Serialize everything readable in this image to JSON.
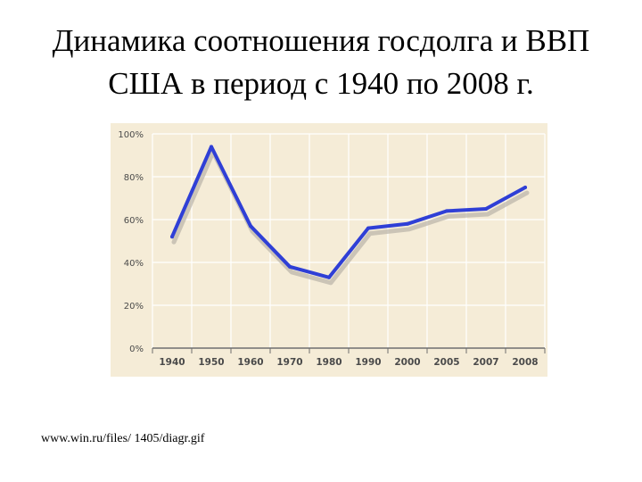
{
  "slide": {
    "title_line1": "Динамика соотношения госдолга и ВВП",
    "title_line2": "США в период с 1940 по 2008 г.",
    "source": "www.win.ru/files/ 1405/diagr.gif"
  },
  "colors": {
    "chart_background": "#f5ecd7",
    "line": "#2f3fd6",
    "shadow": "#b9b4a8",
    "grid": "#ffffff",
    "axis": "#6e6e6e",
    "tick_text": "#4a4a4a"
  },
  "chart_data": {
    "type": "line",
    "title": "",
    "xlabel": "",
    "ylabel": "",
    "categories": [
      "1940",
      "1950",
      "1960",
      "1970",
      "1980",
      "1990",
      "2000",
      "2005",
      "2007",
      "2008"
    ],
    "y_tick_labels": [
      "0%",
      "20%",
      "40%",
      "60%",
      "80%",
      "100%"
    ],
    "ylim": [
      0,
      100
    ],
    "grid": true,
    "series": [
      {
        "values": [
          52,
          94,
          57,
          38,
          33,
          56,
          58,
          64,
          65,
          75
        ]
      }
    ]
  }
}
